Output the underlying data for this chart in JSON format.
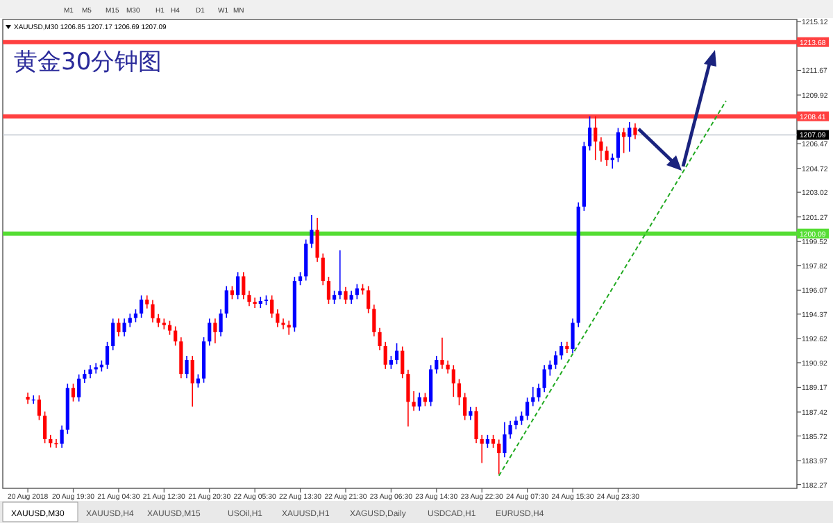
{
  "chart_data": {
    "type": "candlestick",
    "title": "黄金30分钟图",
    "categories": [
      "20 Aug 2018",
      null,
      null,
      null,
      null,
      null,
      null,
      null,
      "20 Aug 19:30",
      null,
      null,
      null,
      null,
      null,
      null,
      null,
      "21 Aug 04:30",
      null,
      null,
      null,
      null,
      null,
      null,
      null,
      "21 Aug 12:30",
      null,
      null,
      null,
      null,
      null,
      null,
      null,
      "21 Aug 20:30",
      null,
      null,
      null,
      null,
      null,
      null,
      null,
      "22 Aug 05:30",
      null,
      null,
      null,
      null,
      null,
      null,
      null,
      "22 Aug 13:30",
      null,
      null,
      null,
      null,
      null,
      null,
      null,
      "22 Aug 21:30",
      null,
      null,
      null,
      null,
      null,
      null,
      null,
      "23 Aug 06:30",
      null,
      null,
      null,
      null,
      null,
      null,
      null,
      "23 Aug 14:30",
      null,
      null,
      null,
      null,
      null,
      null,
      null,
      "23 Aug 22:30",
      null,
      null,
      null,
      null,
      null,
      null,
      null,
      "24 Aug 07:30",
      null,
      null,
      null,
      null,
      null,
      null,
      null,
      "24 Aug 15:30",
      null,
      null,
      null,
      null,
      null,
      null,
      null,
      "24 Aug 23:30",
      null,
      null,
      null,
      null,
      null,
      null,
      null,
      null,
      null,
      null,
      null,
      null,
      null,
      null,
      null,
      null,
      null,
      null,
      null,
      null,
      null,
      null,
      null,
      null,
      null,
      null,
      null,
      null,
      null,
      null,
      null
    ],
    "ohlc": [
      [
        1188.5,
        1188.8,
        1188.0,
        1188.3
      ],
      [
        1188.3,
        1188.6,
        1188.0,
        1188.3
      ],
      [
        1188.3,
        1188.6,
        1186.85,
        1187.15
      ],
      [
        1187.15,
        1187.45,
        1185.2,
        1185.5
      ],
      [
        1185.5,
        1185.8,
        1184.9,
        1185.2
      ],
      [
        1185.2,
        1185.5,
        1184.87,
        1185.17
      ],
      [
        1185.17,
        1186.46,
        1184.87,
        1186.16
      ],
      [
        1186.16,
        1189.43,
        1185.86,
        1189.13
      ],
      [
        1189.13,
        1189.43,
        1188.17,
        1188.47
      ],
      [
        1188.47,
        1190.09,
        1188.17,
        1189.79
      ],
      [
        1189.79,
        1190.42,
        1189.49,
        1190.12
      ],
      [
        1190.12,
        1190.75,
        1189.82,
        1190.45
      ],
      [
        1190.45,
        1190.9,
        1190.15,
        1190.6
      ],
      [
        1190.6,
        1191.08,
        1190.3,
        1190.78
      ],
      [
        1190.78,
        1192.4,
        1190.48,
        1192.1
      ],
      [
        1192.1,
        1194.05,
        1191.8,
        1193.75
      ],
      [
        1193.75,
        1194.05,
        1192.79,
        1193.09
      ],
      [
        1193.09,
        1194.05,
        1192.79,
        1193.75
      ],
      [
        1193.75,
        1194.4,
        1193.45,
        1194.1
      ],
      [
        1194.1,
        1194.71,
        1193.8,
        1194.41
      ],
      [
        1194.41,
        1195.7,
        1194.11,
        1195.4
      ],
      [
        1195.4,
        1195.7,
        1194.77,
        1195.07
      ],
      [
        1195.07,
        1195.37,
        1193.78,
        1194.08
      ],
      [
        1194.08,
        1194.38,
        1193.45,
        1193.75
      ],
      [
        1193.75,
        1194.05,
        1193.29,
        1193.59
      ],
      [
        1193.59,
        1193.89,
        1192.9,
        1193.2
      ],
      [
        1193.2,
        1193.5,
        1192.13,
        1192.43
      ],
      [
        1192.43,
        1192.73,
        1189.82,
        1190.12
      ],
      [
        1190.12,
        1191.41,
        1189.82,
        1191.11
      ],
      [
        1191.11,
        1191.41,
        1187.8,
        1189.46
      ],
      [
        1189.46,
        1190.1,
        1189.16,
        1189.8
      ],
      [
        1189.8,
        1192.73,
        1189.5,
        1192.43
      ],
      [
        1192.43,
        1194.05,
        1192.13,
        1193.75
      ],
      [
        1193.75,
        1194.05,
        1192.3,
        1193.09
      ],
      [
        1193.09,
        1194.71,
        1192.79,
        1194.41
      ],
      [
        1194.41,
        1196.36,
        1194.11,
        1196.06
      ],
      [
        1196.06,
        1196.36,
        1195.43,
        1195.73
      ],
      [
        1195.73,
        1197.35,
        1195.43,
        1197.05
      ],
      [
        1197.05,
        1197.35,
        1195.43,
        1195.73
      ],
      [
        1195.73,
        1196.03,
        1194.94,
        1195.24
      ],
      [
        1195.24,
        1195.54,
        1194.8,
        1195.1
      ],
      [
        1195.1,
        1195.6,
        1194.8,
        1195.3
      ],
      [
        1195.3,
        1195.7,
        1195.0,
        1195.4
      ],
      [
        1195.4,
        1195.7,
        1194.11,
        1194.41
      ],
      [
        1194.41,
        1194.71,
        1193.45,
        1193.75
      ],
      [
        1193.75,
        1194.05,
        1193.3,
        1193.6
      ],
      [
        1193.6,
        1193.9,
        1192.9,
        1193.42
      ],
      [
        1193.42,
        1197.02,
        1193.12,
        1196.72
      ],
      [
        1196.72,
        1197.35,
        1196.42,
        1197.05
      ],
      [
        1197.05,
        1199.66,
        1196.75,
        1199.36
      ],
      [
        1199.36,
        1201.4,
        1199.06,
        1200.35
      ],
      [
        1200.35,
        1201.2,
        1198.07,
        1198.37
      ],
      [
        1198.37,
        1198.67,
        1196.42,
        1196.72
      ],
      [
        1196.72,
        1197.02,
        1195.1,
        1195.4
      ],
      [
        1195.4,
        1196.03,
        1195.1,
        1195.73
      ],
      [
        1195.73,
        1198.9,
        1195.43,
        1196.0
      ],
      [
        1196.0,
        1196.3,
        1195.1,
        1195.4
      ],
      [
        1195.4,
        1196.03,
        1195.1,
        1195.73
      ],
      [
        1195.73,
        1196.5,
        1195.43,
        1196.2
      ],
      [
        1196.2,
        1196.5,
        1195.76,
        1196.06
      ],
      [
        1196.06,
        1196.36,
        1194.44,
        1194.74
      ],
      [
        1194.74,
        1195.04,
        1192.79,
        1193.09
      ],
      [
        1193.09,
        1193.39,
        1191.8,
        1192.1
      ],
      [
        1192.1,
        1192.4,
        1190.48,
        1190.78
      ],
      [
        1190.78,
        1191.41,
        1190.48,
        1191.11
      ],
      [
        1191.11,
        1192.3,
        1190.81,
        1191.77
      ],
      [
        1191.77,
        1192.07,
        1189.82,
        1190.12
      ],
      [
        1190.12,
        1190.42,
        1186.4,
        1188.14
      ],
      [
        1188.14,
        1188.9,
        1187.51,
        1187.81
      ],
      [
        1187.81,
        1188.8,
        1187.51,
        1188.47
      ],
      [
        1188.47,
        1188.77,
        1187.84,
        1188.14
      ],
      [
        1188.14,
        1190.75,
        1187.84,
        1190.45
      ],
      [
        1190.45,
        1191.41,
        1190.15,
        1191.11
      ],
      [
        1191.11,
        1192.7,
        1190.48,
        1190.78
      ],
      [
        1190.78,
        1191.08,
        1190.15,
        1190.45
      ],
      [
        1190.45,
        1190.75,
        1188.5,
        1189.46
      ],
      [
        1189.46,
        1189.76,
        1187.9,
        1188.47
      ],
      [
        1188.47,
        1188.77,
        1186.85,
        1187.15
      ],
      [
        1187.15,
        1187.78,
        1186.85,
        1187.48
      ],
      [
        1187.48,
        1187.78,
        1185.2,
        1185.5
      ],
      [
        1185.5,
        1185.8,
        1183.8,
        1185.17
      ],
      [
        1185.17,
        1185.8,
        1184.87,
        1185.5
      ],
      [
        1185.5,
        1185.8,
        1184.87,
        1185.17
      ],
      [
        1185.17,
        1185.47,
        1183.0,
        1184.51
      ],
      [
        1184.51,
        1186.7,
        1184.21,
        1185.83
      ],
      [
        1185.83,
        1186.79,
        1185.53,
        1186.49
      ],
      [
        1186.49,
        1187.1,
        1186.19,
        1186.8
      ],
      [
        1186.8,
        1187.45,
        1186.5,
        1187.15
      ],
      [
        1187.15,
        1188.44,
        1186.85,
        1188.14
      ],
      [
        1188.14,
        1189.2,
        1187.84,
        1188.47
      ],
      [
        1188.47,
        1189.43,
        1188.17,
        1189.13
      ],
      [
        1189.13,
        1190.75,
        1188.83,
        1190.45
      ],
      [
        1190.45,
        1191.08,
        1190.0,
        1190.78
      ],
      [
        1190.78,
        1191.74,
        1190.48,
        1191.44
      ],
      [
        1191.44,
        1192.4,
        1191.14,
        1192.1
      ],
      [
        1192.1,
        1192.4,
        1191.6,
        1191.9
      ],
      [
        1191.9,
        1194.05,
        1191.6,
        1193.75
      ],
      [
        1193.75,
        1202.3,
        1193.45,
        1202.0
      ],
      [
        1202.0,
        1206.59,
        1201.7,
        1206.29
      ],
      [
        1206.29,
        1208.41,
        1205.99,
        1207.61
      ],
      [
        1207.61,
        1208.41,
        1205.3,
        1206.62
      ],
      [
        1206.62,
        1206.92,
        1205.2,
        1205.96
      ],
      [
        1205.96,
        1206.26,
        1204.9,
        1205.3
      ],
      [
        1205.3,
        1205.76,
        1204.7,
        1205.46
      ],
      [
        1205.46,
        1207.58,
        1205.16,
        1207.28
      ],
      [
        1207.28,
        1207.58,
        1205.8,
        1206.95
      ],
      [
        1206.95,
        1208.0,
        1205.9,
        1207.61
      ],
      [
        1207.61,
        1207.91,
        1206.79,
        1207.09
      ],
      null,
      null,
      null,
      null,
      null,
      null,
      null,
      null,
      null,
      null,
      null,
      null,
      null,
      null,
      null,
      null,
      null,
      null,
      null,
      null,
      null,
      null,
      null,
      null,
      null,
      null,
      null,
      null
    ],
    "colors": [
      "#ff0000",
      "#0000ff",
      "#ff0000",
      "#ff0000",
      "#ff0000",
      "#ff0000",
      "#0000ff",
      "#0000ff",
      "#ff0000",
      "#0000ff",
      "#0000ff",
      "#0000ff",
      "#0000ff",
      "#0000ff",
      "#0000ff",
      "#0000ff",
      "#ff0000",
      "#0000ff",
      "#0000ff",
      "#0000ff",
      "#0000ff",
      "#ff0000",
      "#ff0000",
      "#ff0000",
      "#ff0000",
      "#ff0000",
      "#ff0000",
      "#ff0000",
      "#0000ff",
      "#ff0000",
      "#0000ff",
      "#0000ff",
      "#0000ff",
      "#ff0000",
      "#0000ff",
      "#0000ff",
      "#ff0000",
      "#0000ff",
      "#ff0000",
      "#ff0000",
      "#ff0000",
      "#0000ff",
      "#0000ff",
      "#ff0000",
      "#ff0000",
      "#ff0000",
      "#ff0000",
      "#0000ff",
      "#0000ff",
      "#0000ff",
      "#0000ff",
      "#ff0000",
      "#ff0000",
      "#ff0000",
      "#0000ff",
      "#0000ff",
      "#ff0000",
      "#0000ff",
      "#0000ff",
      "#ff0000",
      "#ff0000",
      "#ff0000",
      "#ff0000",
      "#ff0000",
      "#0000ff",
      "#0000ff",
      "#ff0000",
      "#ff0000",
      "#ff0000",
      "#0000ff",
      "#ff0000",
      "#0000ff",
      "#0000ff",
      "#ff0000",
      "#ff0000",
      "#ff0000",
      "#ff0000",
      "#ff0000",
      "#0000ff",
      "#ff0000",
      "#ff0000",
      "#0000ff",
      "#ff0000",
      "#ff0000",
      "#0000ff",
      "#0000ff",
      "#0000ff",
      "#0000ff",
      "#0000ff",
      "#0000ff",
      "#0000ff",
      "#0000ff",
      "#0000ff",
      "#0000ff",
      "#0000ff",
      "#ff0000",
      "#0000ff",
      "#0000ff",
      "#0000ff",
      "#0000ff",
      "#ff0000",
      "#ff0000",
      "#ff0000",
      "#0000ff",
      "#0000ff",
      "#ff0000",
      "#0000ff",
      "#ff0000",
      null,
      null,
      null,
      null,
      null,
      null,
      null,
      null,
      null,
      null,
      null,
      null,
      null,
      null,
      null,
      null,
      null,
      null,
      null,
      null,
      null,
      null,
      null,
      null,
      null,
      null,
      null,
      null
    ],
    "series": [
      {
        "type": "line",
        "color": "#22aa22",
        "line_style": "dashed",
        "values": [
          null,
          null,
          null,
          null,
          null,
          null,
          null,
          null,
          null,
          null,
          null,
          null,
          null,
          null,
          null,
          null,
          null,
          null,
          null,
          null,
          null,
          null,
          null,
          null,
          null,
          null,
          null,
          null,
          null,
          null,
          null,
          null,
          null,
          null,
          null,
          null,
          null,
          null,
          null,
          null,
          null,
          null,
          null,
          null,
          null,
          null,
          null,
          null,
          null,
          null,
          null,
          null,
          null,
          null,
          null,
          null,
          null,
          null,
          null,
          null,
          null,
          null,
          null,
          null,
          null,
          null,
          null,
          null,
          null,
          null,
          null,
          null,
          null,
          null,
          null,
          null,
          null,
          null,
          null,
          null,
          null,
          null,
          null,
          1182.9,
          null,
          null,
          null,
          null,
          null,
          null,
          null,
          null,
          null,
          null,
          null,
          null,
          null,
          null,
          null,
          null,
          null,
          null,
          null,
          null,
          null,
          null,
          null,
          null,
          null,
          null,
          null,
          null,
          null,
          null,
          null,
          null,
          null,
          null,
          null,
          null,
          null,
          null,
          null,
          1209.5,
          null,
          null,
          null,
          null,
          null,
          null,
          null,
          null,
          null,
          null,
          null,
          null
        ]
      }
    ],
    "ylim": [
      1182.27,
      1215.12
    ],
    "yticks": [
      1182.27,
      1183.97,
      1185.72,
      1187.42,
      1189.17,
      1190.92,
      1192.62,
      1194.37,
      1196.07,
      1197.82,
      1199.52,
      1201.27,
      1203.02,
      1204.72,
      1206.47,
      1209.92,
      1211.67,
      1215.12
    ],
    "ref_lines": [
      {
        "axis": "y",
        "value": 1213.68,
        "label": "1213.68",
        "color": "#ff4040"
      },
      {
        "axis": "y",
        "value": 1208.41,
        "label": "1208.41",
        "color": "#ff4040"
      },
      {
        "axis": "y",
        "value": 1200.09,
        "label": "1200.09",
        "color": "#55dd33"
      },
      {
        "axis": "y",
        "value": 1207.09,
        "label": "1207.09",
        "color": "#c0c8d0"
      }
    ],
    "annotations": [
      "XAUUSD,M30 1206.85 1207.17 1206.69 1207.09",
      "M1",
      "M5",
      "M15",
      "M30",
      "H1",
      "H4",
      "D1",
      "W1",
      "MN",
      "XAUUSD,M30",
      "XAUUSD,H4",
      "XAUUSD,M15",
      "USOil,H1",
      "XAUUSD,H1",
      "XAGUSD,Daily",
      "USDCAD,H1",
      "EURUSD,H4"
    ]
  }
}
